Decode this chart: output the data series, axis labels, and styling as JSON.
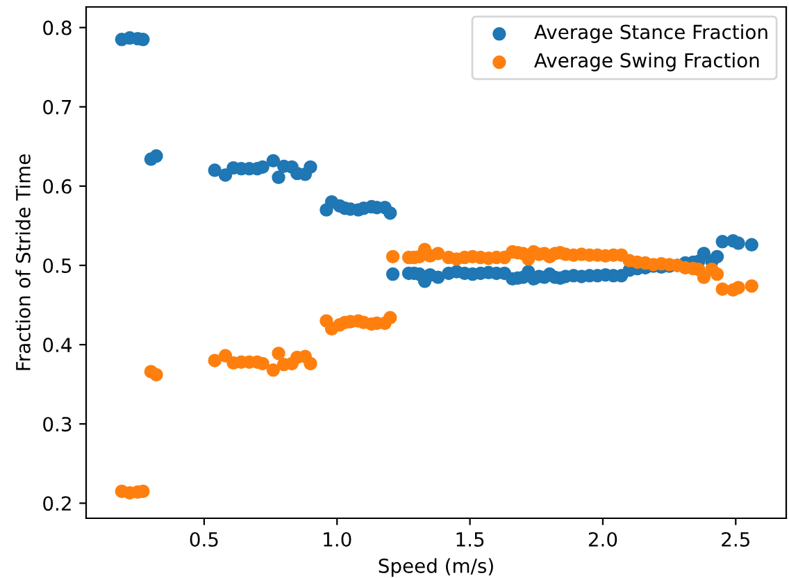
{
  "chart_data": {
    "type": "scatter",
    "xlabel": "Speed (m/s)",
    "ylabel": "Fraction of Stride Time",
    "x": [
      0.19,
      0.22,
      0.25,
      0.27,
      0.3,
      0.32,
      0.54,
      0.58,
      0.61,
      0.64,
      0.67,
      0.7,
      0.72,
      0.76,
      0.78,
      0.8,
      0.83,
      0.85,
      0.88,
      0.9,
      0.96,
      0.98,
      1.01,
      1.03,
      1.05,
      1.08,
      1.1,
      1.13,
      1.15,
      1.18,
      1.2,
      1.21,
      1.27,
      1.29,
      1.31,
      1.33,
      1.35,
      1.38,
      1.42,
      1.45,
      1.48,
      1.51,
      1.54,
      1.57,
      1.6,
      1.63,
      1.66,
      1.68,
      1.7,
      1.72,
      1.74,
      1.76,
      1.78,
      1.8,
      1.82,
      1.84,
      1.86,
      1.89,
      1.92,
      1.95,
      1.98,
      2.01,
      2.04,
      2.07,
      2.1,
      2.13,
      2.16,
      2.19,
      2.22,
      2.25,
      2.28,
      2.31,
      2.34,
      2.36,
      2.38,
      2.41,
      2.43,
      2.45,
      2.49,
      2.51,
      2.56
    ],
    "series": [
      {
        "name": "Average Stance Fraction",
        "color": "#1f77b4",
        "values": [
          0.785,
          0.787,
          0.786,
          0.785,
          0.634,
          0.638,
          0.62,
          0.614,
          0.623,
          0.622,
          0.622,
          0.622,
          0.624,
          0.632,
          0.611,
          0.625,
          0.624,
          0.616,
          0.615,
          0.624,
          0.57,
          0.58,
          0.575,
          0.572,
          0.571,
          0.57,
          0.572,
          0.574,
          0.573,
          0.573,
          0.566,
          0.489,
          0.49,
          0.49,
          0.489,
          0.48,
          0.488,
          0.485,
          0.49,
          0.492,
          0.49,
          0.489,
          0.49,
          0.491,
          0.49,
          0.49,
          0.483,
          0.484,
          0.485,
          0.492,
          0.483,
          0.486,
          0.485,
          0.489,
          0.485,
          0.484,
          0.486,
          0.487,
          0.486,
          0.487,
          0.487,
          0.488,
          0.487,
          0.487,
          0.494,
          0.496,
          0.497,
          0.499,
          0.498,
          0.499,
          0.5,
          0.503,
          0.504,
          0.505,
          0.515,
          0.505,
          0.511,
          0.53,
          0.531,
          0.528,
          0.526
        ]
      },
      {
        "name": "Average Swing Fraction",
        "color": "#ff7f0e",
        "values": [
          0.215,
          0.213,
          0.214,
          0.215,
          0.366,
          0.362,
          0.38,
          0.386,
          0.377,
          0.378,
          0.378,
          0.378,
          0.376,
          0.368,
          0.389,
          0.375,
          0.376,
          0.384,
          0.385,
          0.376,
          0.43,
          0.42,
          0.425,
          0.428,
          0.429,
          0.43,
          0.428,
          0.426,
          0.427,
          0.427,
          0.434,
          0.511,
          0.51,
          0.51,
          0.511,
          0.52,
          0.512,
          0.515,
          0.51,
          0.508,
          0.51,
          0.511,
          0.51,
          0.509,
          0.51,
          0.51,
          0.517,
          0.516,
          0.515,
          0.508,
          0.517,
          0.514,
          0.515,
          0.511,
          0.515,
          0.516,
          0.514,
          0.513,
          0.514,
          0.513,
          0.513,
          0.512,
          0.513,
          0.513,
          0.506,
          0.504,
          0.503,
          0.501,
          0.502,
          0.501,
          0.5,
          0.497,
          0.496,
          0.495,
          0.485,
          0.495,
          0.489,
          0.47,
          0.469,
          0.472,
          0.474
        ]
      }
    ],
    "xlim": [
      0.056,
      2.69
    ],
    "ylim": [
      0.181,
      0.826
    ],
    "xticks": [
      0.5,
      {
        "value": 1,
        "label": "1.0"
      },
      1.5,
      {
        "value": 2,
        "label": "2.0"
      },
      2.5
    ],
    "yticks": [
      0.2,
      0.3,
      0.4,
      0.5,
      0.6,
      0.7,
      0.8
    ],
    "marker": "circle",
    "legend": "top right",
    "grid": false
  }
}
